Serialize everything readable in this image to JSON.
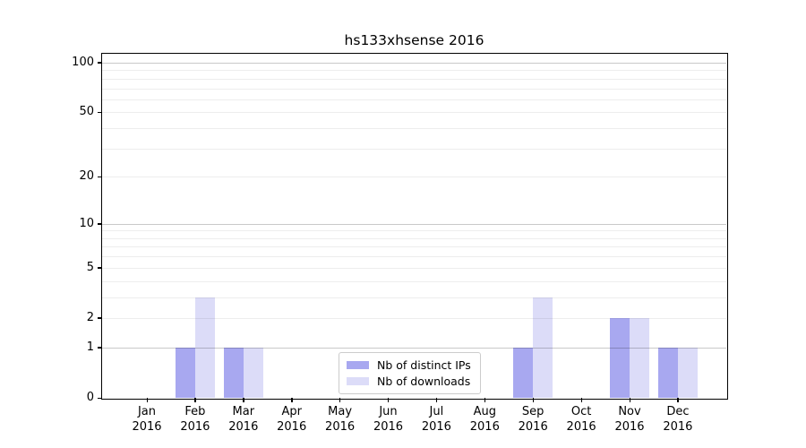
{
  "chart_data": {
    "type": "bar",
    "title": "hs133xhsense 2016",
    "x": {
      "months": [
        "Jan",
        "Feb",
        "Mar",
        "Apr",
        "May",
        "Jun",
        "Jul",
        "Aug",
        "Sep",
        "Oct",
        "Nov",
        "Dec"
      ],
      "year": "2016"
    },
    "series": [
      {
        "name": "Nb of distinct IPs",
        "color": "#a8a8f0",
        "values": [
          0,
          1,
          1,
          0,
          0,
          0,
          0,
          0,
          1,
          0,
          2,
          1
        ]
      },
      {
        "name": "Nb of downloads",
        "color": "#dcdcf8",
        "values": [
          0,
          3,
          1,
          0,
          0,
          0,
          0,
          0,
          3,
          0,
          2,
          1
        ]
      }
    ],
    "y_axis": {
      "scale": "log1p",
      "ticks": [
        0,
        1,
        2,
        5,
        10,
        20,
        50,
        100
      ],
      "ylim": [
        0,
        113
      ],
      "major_gridlines": [
        1,
        10,
        100
      ],
      "minor_gridlines": [
        2,
        3,
        4,
        5,
        6,
        7,
        8,
        9,
        20,
        30,
        40,
        50,
        60,
        70,
        80,
        90
      ],
      "grid": "on"
    },
    "legend": {
      "position": "lower center inside"
    }
  }
}
